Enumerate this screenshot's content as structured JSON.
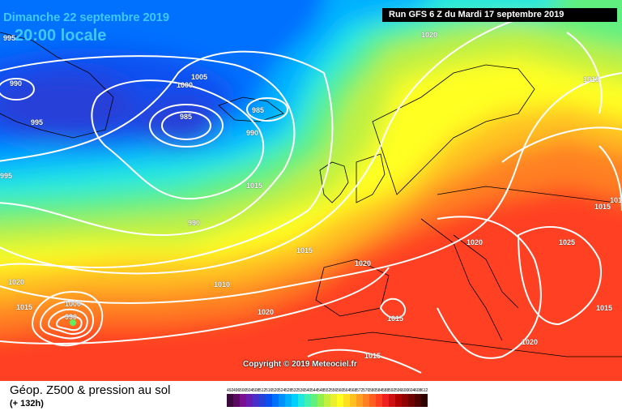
{
  "header": {
    "date_line": "Dimanche 22 septembre 2019",
    "time_line": "20:00 locale",
    "run_info": "Run GFS 6 Z du Mardi 17 septembre 2019"
  },
  "copyright": "Copyright © 2019 Meteociel.fr",
  "legend": {
    "title": "Géop. Z500 & pression au sol",
    "subtitle": "(+ 132h)",
    "scale_values": [
      "492",
      "496",
      "500",
      "504",
      "508",
      "512",
      "516",
      "520",
      "524",
      "528",
      "532",
      "536",
      "540",
      "544",
      "548",
      "552",
      "556",
      "560",
      "564",
      "568",
      "572",
      "576",
      "580",
      "584",
      "588",
      "592",
      "596",
      "600",
      "604",
      "608",
      "612"
    ],
    "scale_colors": [
      "#3b0a3d",
      "#5a0b60",
      "#7a1090",
      "#6a1cb0",
      "#4a30c8",
      "#2840d8",
      "#0a50f0",
      "#0070ff",
      "#0090ff",
      "#00b0ff",
      "#00d0ff",
      "#20e8e0",
      "#40f0b0",
      "#60f080",
      "#90f050",
      "#c0f040",
      "#e8f030",
      "#ffff20",
      "#ffe020",
      "#ffc020",
      "#ffa020",
      "#ff8020",
      "#ff6020",
      "#ff4020",
      "#f02020",
      "#d01010",
      "#b00000",
      "#900000",
      "#700000",
      "#500000",
      "#300000"
    ]
  },
  "pressure_labels": [
    "995",
    "990",
    "995",
    "1000",
    "1005",
    "985",
    "985",
    "990",
    "995",
    "990",
    "1020",
    "1015",
    "1015",
    "1015",
    "1020",
    "1015",
    "1020",
    "1010",
    "1020",
    "1000",
    "990",
    "1015",
    "1015",
    "1020",
    "1025",
    "1015",
    "1020",
    "1015",
    "1015",
    "1020"
  ]
}
